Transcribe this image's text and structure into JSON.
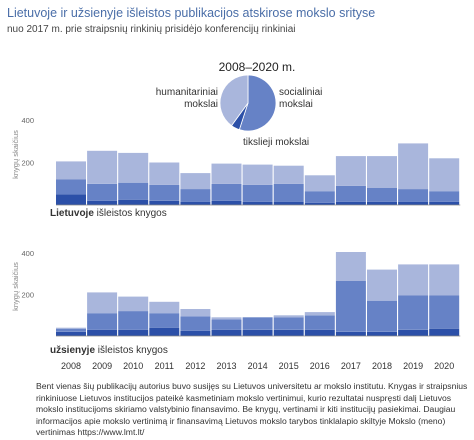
{
  "header": {
    "title": "Lietuvoje ir užsienyje išleistos publikacijos atskirose mokslo srityse",
    "subtitle": "nuo 2017 m. prie straipsnių rinkinių prisidėjo konferencijų rinkiniai"
  },
  "pie": {
    "title": "2008–2020 m.",
    "labels": {
      "humanities": [
        "humanitariniai",
        "mokslai"
      ],
      "social": [
        "socialiniai",
        "mokslai"
      ],
      "exact": [
        "tikslieji mokslai"
      ]
    },
    "shares": {
      "humanities": 0.4,
      "social": 0.55,
      "exact": 0.05
    }
  },
  "colors": {
    "title": "#4a6ea8",
    "humanities": "#a9b6dc",
    "social": "#6682c6",
    "exact": "#2c50a8",
    "axis": "#999999",
    "label": "#333333"
  },
  "chart_data": [
    {
      "type": "bar",
      "stacked": true,
      "subtitle_bold": "Lietuvoje",
      "subtitle_rest": " išleistos knygos",
      "ylabel": "knygų skaičius",
      "ylim": [
        0,
        400
      ],
      "yticks": [
        0,
        200,
        400
      ],
      "categories": [
        "2008",
        "2009",
        "2010",
        "2011",
        "2012",
        "2013",
        "2014",
        "2015",
        "2016",
        "2017",
        "2018",
        "2019",
        "2020"
      ],
      "series": [
        {
          "name": "tikslieji mokslai",
          "values": [
            50,
            20,
            25,
            20,
            15,
            20,
            15,
            15,
            10,
            15,
            15,
            15,
            15
          ]
        },
        {
          "name": "socialiniai mokslai",
          "values": [
            70,
            80,
            80,
            75,
            60,
            80,
            80,
            85,
            55,
            75,
            65,
            60,
            50
          ]
        },
        {
          "name": "humanitariniai mokslai",
          "values": [
            85,
            155,
            140,
            105,
            75,
            95,
            95,
            85,
            75,
            140,
            150,
            215,
            155
          ]
        }
      ]
    },
    {
      "type": "bar",
      "stacked": true,
      "subtitle_bold": "užsienyje",
      "subtitle_rest": " išleistos knygos",
      "ylabel": "knygų skaičius",
      "ylim": [
        0,
        400
      ],
      "yticks": [
        0,
        200,
        400
      ],
      "categories": [
        "2008",
        "2009",
        "2010",
        "2011",
        "2012",
        "2013",
        "2014",
        "2015",
        "2016",
        "2017",
        "2018",
        "2019",
        "2020"
      ],
      "series": [
        {
          "name": "tikslieji mokslai",
          "values": [
            20,
            30,
            30,
            40,
            25,
            30,
            30,
            30,
            30,
            20,
            20,
            30,
            35
          ]
        },
        {
          "name": "socialiniai mokslai",
          "values": [
            15,
            80,
            90,
            70,
            70,
            50,
            60,
            60,
            70,
            245,
            150,
            165,
            160
          ]
        },
        {
          "name": "humanitariniai mokslai",
          "values": [
            5,
            100,
            70,
            55,
            35,
            10,
            0,
            10,
            15,
            140,
            150,
            150,
            150
          ]
        }
      ]
    }
  ],
  "footnote": "Bent vienas šių publikacijų autorius buvo susijęs su Lietuvos universitetu ar mokslo institutu. Knygas ir straipsnius rinkiniuose Lietuvos institucijos pateikė kasmetiniam mokslo vertinimui, kurio rezultatai nuspręsti dalį Lietuvos mokslo institucijoms skiriamo valstybinio finansavimo. Be knygų, vertinami ir kiti institucijų pasiekimai. Daugiau informacijos apie mokslo vertinimą ir finansavimą Lietuvos mokslo tarybos tinklalapio skiltyje Mokslo (meno) vertinimas https://www.lmt.lt/"
}
